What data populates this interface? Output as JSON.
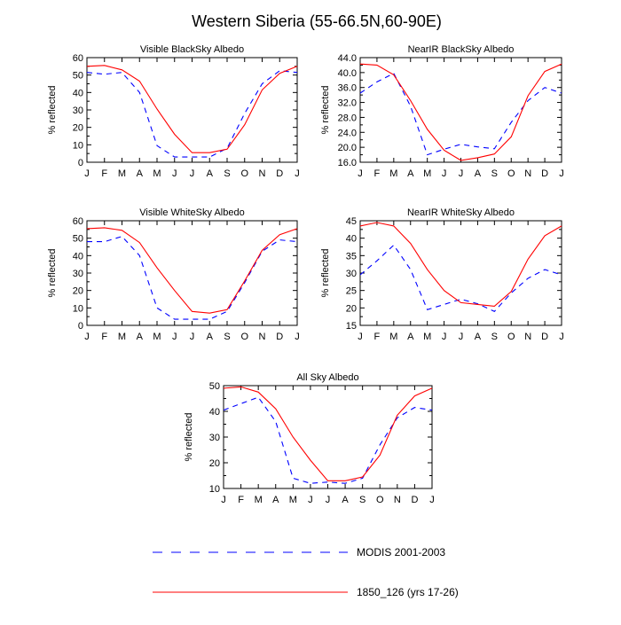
{
  "title": "Western Siberia (55-66.5N,60-90E)",
  "months": [
    "J",
    "F",
    "M",
    "A",
    "M",
    "J",
    "J",
    "A",
    "S",
    "O",
    "N",
    "D",
    "J"
  ],
  "ylabel": "% reflected",
  "legend": {
    "modis": "MODIS 2001-2003",
    "model": "1850_126 (yrs 17-26)",
    "modis_color": "#0000ff",
    "model_color": "#ff0000"
  },
  "chart_data": [
    {
      "type": "line",
      "title": "Visible BlackSky Albedo",
      "ylabel": "% reflected",
      "ylim": [
        0,
        60
      ],
      "yticks": [
        0,
        10,
        20,
        30,
        40,
        50,
        60
      ],
      "ytick_labels": [
        "0",
        "10",
        "20",
        "30",
        "40",
        "50",
        "60"
      ],
      "categories": [
        "J",
        "F",
        "M",
        "A",
        "M",
        "J",
        "J",
        "A",
        "S",
        "O",
        "N",
        "D",
        "J"
      ],
      "series": [
        {
          "name": "MODIS 2001-2003",
          "values": [
            51.5,
            50.5,
            51.5,
            40,
            9.5,
            3,
            3,
            3,
            8,
            28,
            45,
            52.5,
            51.5
          ]
        },
        {
          "name": "1850_126 (yrs 17-26)",
          "values": [
            55,
            55.5,
            53,
            46.5,
            30.5,
            16,
            5.5,
            5.5,
            7.5,
            21.5,
            41.5,
            51,
            55
          ]
        }
      ]
    },
    {
      "type": "line",
      "title": "NearIR BlackSky Albedo",
      "ylabel": "% reflected",
      "ylim": [
        16,
        44
      ],
      "yticks": [
        16,
        20,
        24,
        28,
        32,
        36,
        40,
        44
      ],
      "ytick_labels": [
        "16.0",
        "20.0",
        "24.0",
        "28.0",
        "32.0",
        "36.0",
        "40.0",
        "44.0"
      ],
      "categories": [
        "J",
        "F",
        "M",
        "A",
        "M",
        "J",
        "J",
        "A",
        "S",
        "O",
        "N",
        "D",
        "J"
      ],
      "series": [
        {
          "name": "MODIS 2001-2003",
          "values": [
            34.5,
            37.5,
            39.8,
            31,
            18,
            19.5,
            20.8,
            20.1,
            19.6,
            26.7,
            32.5,
            36,
            34.5
          ]
        },
        {
          "name": "1850_126 (yrs 17-26)",
          "values": [
            42.3,
            42,
            39.4,
            32.5,
            24.8,
            19.2,
            16.5,
            17.2,
            18.2,
            22.8,
            33.8,
            40.3,
            42.3
          ]
        }
      ]
    },
    {
      "type": "line",
      "title": "Visible WhiteSky Albedo",
      "ylabel": "% reflected",
      "ylim": [
        0,
        60
      ],
      "yticks": [
        0,
        10,
        20,
        30,
        40,
        50,
        60
      ],
      "ytick_labels": [
        "0",
        "10",
        "20",
        "30",
        "40",
        "50",
        "60"
      ],
      "categories": [
        "J",
        "F",
        "M",
        "A",
        "M",
        "J",
        "J",
        "A",
        "S",
        "O",
        "N",
        "D",
        "J"
      ],
      "series": [
        {
          "name": "MODIS 2001-2003",
          "values": [
            48,
            48,
            51,
            40,
            10,
            3.5,
            3.5,
            3.5,
            8,
            24.5,
            42.5,
            49,
            48
          ]
        },
        {
          "name": "1850_126 (yrs 17-26)",
          "values": [
            55.5,
            56,
            54.5,
            47.5,
            33,
            20,
            8,
            7,
            9,
            25.5,
            43,
            52,
            55.5
          ]
        }
      ]
    },
    {
      "type": "line",
      "title": "NearIR WhiteSky Albedo",
      "ylabel": "% reflected",
      "ylim": [
        15,
        45
      ],
      "yticks": [
        15,
        20,
        25,
        30,
        35,
        40,
        45
      ],
      "ytick_labels": [
        "15",
        "20",
        "25",
        "30",
        "35",
        "40",
        "45"
      ],
      "categories": [
        "J",
        "F",
        "M",
        "A",
        "M",
        "J",
        "J",
        "A",
        "S",
        "O",
        "N",
        "D",
        "J"
      ],
      "series": [
        {
          "name": "MODIS 2001-2003",
          "values": [
            29.5,
            33.5,
            38,
            31,
            19.5,
            21,
            22.5,
            21.2,
            19,
            24.3,
            28.5,
            31,
            29.5
          ]
        },
        {
          "name": "1850_126 (yrs 17-26)",
          "values": [
            43.5,
            44.5,
            43.5,
            38.5,
            31,
            25,
            21.5,
            21,
            20.5,
            24.7,
            34,
            40.7,
            43.5
          ]
        }
      ]
    },
    {
      "type": "line",
      "title": "All Sky Albedo",
      "ylabel": "% reflected",
      "ylim": [
        10,
        50
      ],
      "yticks": [
        10,
        20,
        30,
        40,
        50
      ],
      "ytick_labels": [
        "10",
        "20",
        "30",
        "40",
        "50"
      ],
      "categories": [
        "J",
        "F",
        "M",
        "A",
        "M",
        "J",
        "J",
        "A",
        "S",
        "O",
        "N",
        "D",
        "J"
      ],
      "series": [
        {
          "name": "MODIS 2001-2003",
          "values": [
            40.5,
            43,
            45.5,
            36,
            14,
            12,
            12.5,
            12,
            14,
            27,
            37.5,
            41.5,
            40.5
          ]
        },
        {
          "name": "1850_126 (yrs 17-26)",
          "values": [
            49,
            49.5,
            47.5,
            41,
            30,
            21,
            13,
            13,
            14.5,
            23,
            38.5,
            46,
            49
          ]
        }
      ]
    }
  ]
}
